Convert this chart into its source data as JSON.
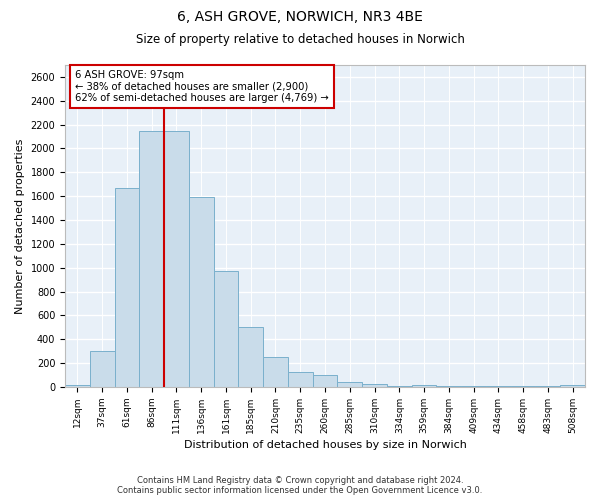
{
  "title": "6, ASH GROVE, NORWICH, NR3 4BE",
  "subtitle": "Size of property relative to detached houses in Norwich",
  "xlabel": "Distribution of detached houses by size in Norwich",
  "ylabel": "Number of detached properties",
  "bar_color": "#c9dcea",
  "bar_edge_color": "#7ab0cc",
  "background_color": "#e8f0f8",
  "grid_color": "#ffffff",
  "annotation_box_color": "#cc0000",
  "property_line_color": "#cc0000",
  "annotation_line1": "6 ASH GROVE: 97sqm",
  "annotation_line2": "← 38% of detached houses are smaller (2,900)",
  "annotation_line3": "62% of semi-detached houses are larger (4,769) →",
  "categories": [
    "12sqm",
    "37sqm",
    "61sqm",
    "86sqm",
    "111sqm",
    "136sqm",
    "161sqm",
    "185sqm",
    "210sqm",
    "235sqm",
    "260sqm",
    "285sqm",
    "310sqm",
    "334sqm",
    "359sqm",
    "384sqm",
    "409sqm",
    "434sqm",
    "458sqm",
    "483sqm",
    "508sqm"
  ],
  "values": [
    20,
    300,
    1670,
    2150,
    2150,
    1590,
    970,
    500,
    250,
    125,
    100,
    40,
    25,
    5,
    20,
    5,
    5,
    5,
    5,
    5,
    20
  ],
  "ylim": [
    0,
    2700
  ],
  "yticks": [
    0,
    200,
    400,
    600,
    800,
    1000,
    1200,
    1400,
    1600,
    1800,
    2000,
    2200,
    2400,
    2600
  ],
  "footer_line1": "Contains HM Land Registry data © Crown copyright and database right 2024.",
  "footer_line2": "Contains public sector information licensed under the Open Government Licence v3.0.",
  "property_bin_index": 3
}
